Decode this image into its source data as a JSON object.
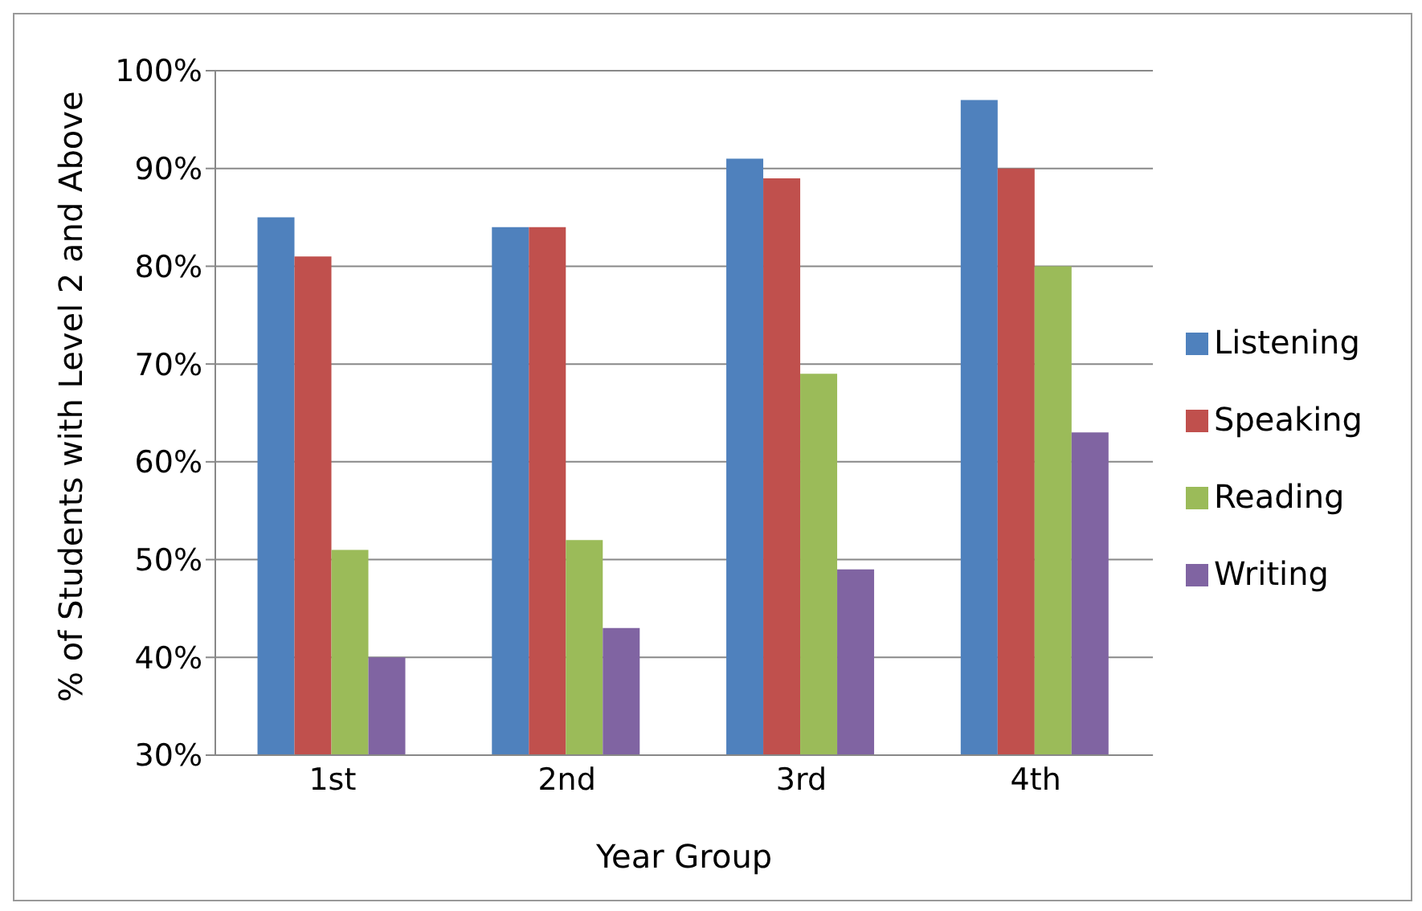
{
  "chart_data": {
    "type": "bar",
    "xlabel": "Year Group",
    "ylabel": "% of Students with Level 2 and Above",
    "categories": [
      "1st",
      "2nd",
      "3rd",
      "4th"
    ],
    "series": [
      {
        "name": "Listening",
        "color": "#4f81bd",
        "values": [
          85,
          84,
          91,
          97
        ]
      },
      {
        "name": "Speaking",
        "color": "#c0504d",
        "values": [
          81,
          84,
          89,
          90
        ]
      },
      {
        "name": "Reading",
        "color": "#9bbb59",
        "values": [
          51,
          52,
          69,
          80
        ]
      },
      {
        "name": "Writing",
        "color": "#8064a2",
        "values": [
          40,
          43,
          49,
          63
        ]
      }
    ],
    "ylim": [
      30,
      100
    ],
    "yticks": [
      {
        "value": 30,
        "label": "30%"
      },
      {
        "value": 40,
        "label": "40%"
      },
      {
        "value": 50,
        "label": "50%"
      },
      {
        "value": 60,
        "label": "60%"
      },
      {
        "value": 70,
        "label": "70%"
      },
      {
        "value": 80,
        "label": "80%"
      },
      {
        "value": 90,
        "label": "90%"
      },
      {
        "value": 100,
        "label": "100%"
      }
    ],
    "grid": "y",
    "legend": "right"
  }
}
